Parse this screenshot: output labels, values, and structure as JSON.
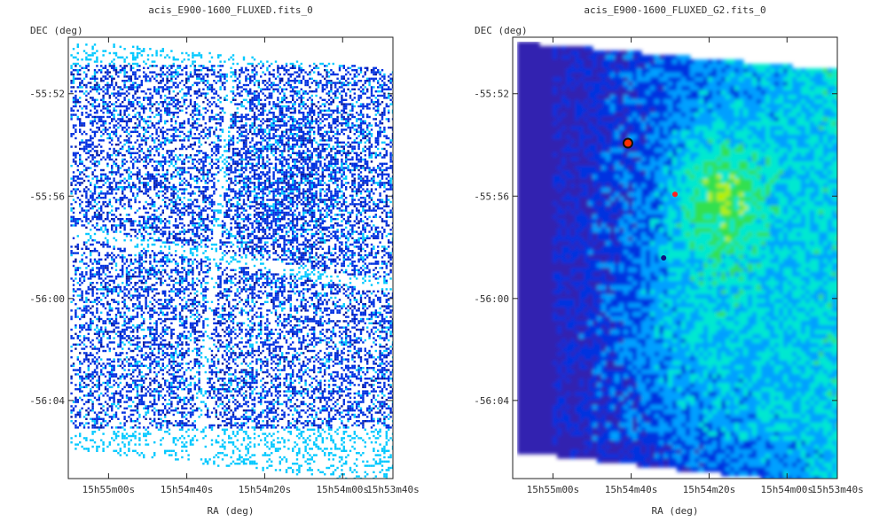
{
  "chart_data": [
    {
      "type": "heatmap",
      "title": "acis_E900-1600_FLUXED.fits_0",
      "xlabel": "RA (deg)",
      "ylabel": "DEC (deg)",
      "x_ticks": [
        "15h55m00s",
        "15h54m40s",
        "15h54m20s",
        "15h54m00s",
        "15h53m40s"
      ],
      "y_ticks": [
        "-55:52",
        "-55:56",
        "-56:00",
        "-56:04"
      ],
      "render": "sparse-counts",
      "colors": {
        "low": "#00c8ff",
        "mid": "#0030e0",
        "high": "#0a1a9a"
      }
    },
    {
      "type": "heatmap",
      "title": "acis_E900-1600_FLUXED_G2.fits_0",
      "xlabel": "RA (deg)",
      "ylabel": "DEC (deg)",
      "x_ticks": [
        "15h55m00s",
        "15h54m40s",
        "15h54m20s",
        "15h54m00s",
        "15h53m40s"
      ],
      "y_ticks": [
        "-55:52",
        "-55:56",
        "-56:00",
        "-56:04"
      ],
      "render": "smoothed",
      "colormap": [
        "#3020b0",
        "#0030e0",
        "#00a0ff",
        "#00e8d0",
        "#30e050",
        "#b8f000",
        "#ffe000",
        "#ff3000"
      ]
    }
  ]
}
